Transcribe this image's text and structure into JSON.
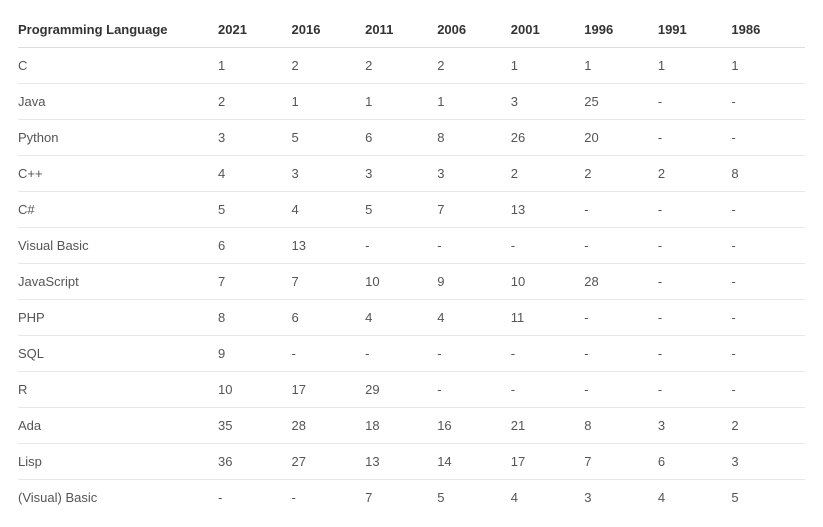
{
  "table": {
    "type": "table",
    "columns": [
      "Programming Language",
      "2021",
      "2016",
      "2011",
      "2006",
      "2001",
      "1996",
      "1991",
      "1986"
    ],
    "rows": [
      [
        "C",
        "1",
        "2",
        "2",
        "2",
        "1",
        "1",
        "1",
        "1"
      ],
      [
        "Java",
        "2",
        "1",
        "1",
        "1",
        "3",
        "25",
        "-",
        "-"
      ],
      [
        "Python",
        "3",
        "5",
        "6",
        "8",
        "26",
        "20",
        "-",
        "-"
      ],
      [
        "C++",
        "4",
        "3",
        "3",
        "3",
        "2",
        "2",
        "2",
        "8"
      ],
      [
        "C#",
        "5",
        "4",
        "5",
        "7",
        "13",
        "-",
        "-",
        "-"
      ],
      [
        "Visual Basic",
        "6",
        "13",
        "-",
        "-",
        "-",
        "-",
        "-",
        "-"
      ],
      [
        "JavaScript",
        "7",
        "7",
        "10",
        "9",
        "10",
        "28",
        "-",
        "-"
      ],
      [
        "PHP",
        "8",
        "6",
        "4",
        "4",
        "11",
        "-",
        "-",
        "-"
      ],
      [
        "SQL",
        "9",
        "-",
        "-",
        "-",
        "-",
        "-",
        "-",
        "-"
      ],
      [
        "R",
        "10",
        "17",
        "29",
        "-",
        "-",
        "-",
        "-",
        "-"
      ],
      [
        "Ada",
        "35",
        "28",
        "18",
        "16",
        "21",
        "8",
        "3",
        "2"
      ],
      [
        "Lisp",
        "36",
        "27",
        "13",
        "14",
        "17",
        "7",
        "6",
        "3"
      ],
      [
        "(Visual) Basic",
        "-",
        "-",
        "7",
        "5",
        "4",
        "3",
        "4",
        "5"
      ]
    ],
    "column_widths": [
      "200px",
      "auto",
      "auto",
      "auto",
      "auto",
      "auto",
      "auto",
      "auto",
      "auto"
    ],
    "header_font_weight": 700,
    "header_color": "#333333",
    "cell_color": "#555555",
    "background_color": "#ffffff",
    "border_color": "#e8e8e8",
    "header_border_color": "#dddddd",
    "font_size": 13
  }
}
